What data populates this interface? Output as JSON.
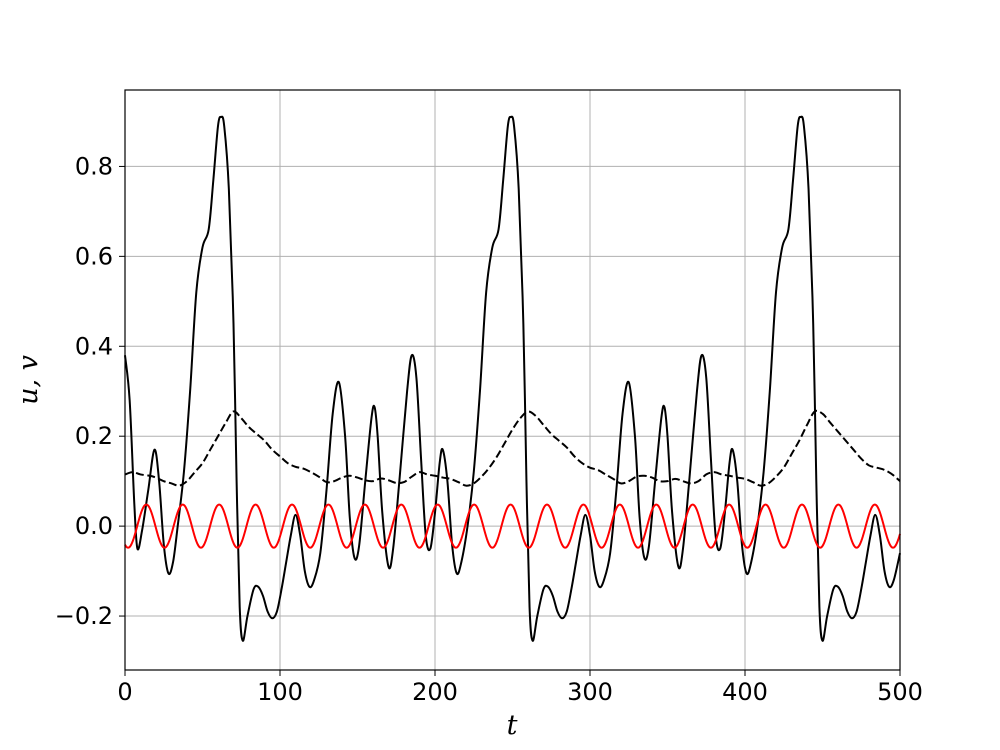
{
  "chart_data": {
    "type": "line",
    "title": "",
    "xlabel": "t",
    "ylabel": "u, v",
    "xlim": [
      0,
      500
    ],
    "ylim": [
      -0.32,
      0.97
    ],
    "xticks": [
      0,
      100,
      200,
      300,
      400,
      500
    ],
    "xtick_labels": [
      "0",
      "100",
      "200",
      "300",
      "400",
      "500"
    ],
    "yticks": [
      -0.2,
      0.0,
      0.2,
      0.4,
      0.6,
      0.8
    ],
    "ytick_labels": [
      "−0.2",
      "0.0",
      "0.2",
      "0.4",
      "0.6",
      "0.8"
    ],
    "grid": true,
    "legend": "none",
    "series": [
      {
        "style": "solid",
        "color": "#000000",
        "points": [
          [
            0,
            0.38
          ],
          [
            3,
            0.28
          ],
          [
            6,
            0.05
          ],
          [
            8,
            -0.05
          ],
          [
            11,
            -0.01
          ],
          [
            15,
            0.08
          ],
          [
            19,
            0.17
          ],
          [
            22,
            0.1
          ],
          [
            25,
            -0.04
          ],
          [
            28,
            -0.105
          ],
          [
            31,
            -0.08
          ],
          [
            34,
            0.0
          ],
          [
            38,
            0.12
          ],
          [
            42,
            0.3
          ],
          [
            46,
            0.52
          ],
          [
            50,
            0.62
          ],
          [
            54,
            0.66
          ],
          [
            57,
            0.77
          ],
          [
            60,
            0.89
          ],
          [
            62,
            0.91
          ],
          [
            64,
            0.89
          ],
          [
            67,
            0.75
          ],
          [
            70,
            0.45
          ],
          [
            72,
            0.1
          ],
          [
            74,
            -0.18
          ],
          [
            76,
            -0.255
          ],
          [
            79,
            -0.2
          ],
          [
            83,
            -0.14
          ],
          [
            86,
            -0.135
          ],
          [
            89,
            -0.155
          ],
          [
            92,
            -0.19
          ],
          [
            95,
            -0.205
          ],
          [
            98,
            -0.19
          ],
          [
            101,
            -0.14
          ],
          [
            104,
            -0.08
          ],
          [
            107,
            -0.02
          ],
          [
            110,
            0.025
          ],
          [
            113,
            -0.02
          ],
          [
            116,
            -0.1
          ],
          [
            119,
            -0.135
          ],
          [
            122,
            -0.12
          ],
          [
            126,
            -0.06
          ],
          [
            130,
            0.08
          ],
          [
            134,
            0.25
          ],
          [
            138,
            0.32
          ],
          [
            142,
            0.2
          ],
          [
            145,
            0.02
          ],
          [
            148,
            -0.07
          ],
          [
            151,
            -0.045
          ],
          [
            155,
            0.1
          ],
          [
            159,
            0.24
          ],
          [
            161,
            0.265
          ],
          [
            163,
            0.2
          ],
          [
            166,
            0.03
          ],
          [
            170,
            -0.09
          ],
          [
            173,
            -0.05
          ],
          [
            177,
            0.1
          ],
          [
            182,
            0.3
          ],
          [
            185,
            0.38
          ],
          [
            188,
            0.33
          ],
          [
            191,
            0.15
          ],
          [
            194,
            -0.02
          ],
          [
            197,
            -0.05
          ],
          [
            200,
            0.03
          ],
          [
            203,
            0.14
          ],
          [
            205,
            0.17
          ],
          [
            208,
            0.1
          ],
          [
            211,
            -0.04
          ],
          [
            214,
            -0.105
          ],
          [
            217,
            -0.08
          ],
          [
            221,
            0.0
          ],
          [
            225,
            0.12
          ],
          [
            229,
            0.3
          ],
          [
            233,
            0.52
          ],
          [
            237,
            0.62
          ],
          [
            241,
            0.66
          ],
          [
            244,
            0.77
          ],
          [
            247,
            0.89
          ],
          [
            249,
            0.91
          ],
          [
            251,
            0.89
          ],
          [
            254,
            0.75
          ],
          [
            257,
            0.45
          ],
          [
            259,
            0.1
          ],
          [
            261,
            -0.18
          ],
          [
            263,
            -0.255
          ],
          [
            266,
            -0.2
          ],
          [
            270,
            -0.14
          ],
          [
            273,
            -0.135
          ],
          [
            276,
            -0.155
          ],
          [
            279,
            -0.19
          ],
          [
            282,
            -0.205
          ],
          [
            285,
            -0.19
          ],
          [
            288,
            -0.14
          ],
          [
            291,
            -0.08
          ],
          [
            294,
            -0.02
          ],
          [
            297,
            0.025
          ],
          [
            300,
            -0.02
          ],
          [
            303,
            -0.1
          ],
          [
            306,
            -0.135
          ],
          [
            309,
            -0.12
          ],
          [
            313,
            -0.06
          ],
          [
            317,
            0.08
          ],
          [
            321,
            0.25
          ],
          [
            325,
            0.32
          ],
          [
            329,
            0.2
          ],
          [
            332,
            0.02
          ],
          [
            335,
            -0.07
          ],
          [
            338,
            -0.045
          ],
          [
            342,
            0.1
          ],
          [
            346,
            0.24
          ],
          [
            348,
            0.265
          ],
          [
            350,
            0.2
          ],
          [
            353,
            0.03
          ],
          [
            357,
            -0.09
          ],
          [
            360,
            -0.05
          ],
          [
            364,
            0.1
          ],
          [
            369,
            0.3
          ],
          [
            372,
            0.38
          ],
          [
            375,
            0.33
          ],
          [
            378,
            0.15
          ],
          [
            381,
            -0.02
          ],
          [
            384,
            -0.05
          ],
          [
            387,
            0.03
          ],
          [
            390,
            0.14
          ],
          [
            392,
            0.17
          ],
          [
            395,
            0.1
          ],
          [
            398,
            -0.04
          ],
          [
            401,
            -0.105
          ],
          [
            404,
            -0.08
          ],
          [
            408,
            0.0
          ],
          [
            412,
            0.12
          ],
          [
            416,
            0.3
          ],
          [
            420,
            0.52
          ],
          [
            424,
            0.62
          ],
          [
            428,
            0.66
          ],
          [
            431,
            0.77
          ],
          [
            434,
            0.89
          ],
          [
            436,
            0.91
          ],
          [
            438,
            0.89
          ],
          [
            441,
            0.75
          ],
          [
            444,
            0.45
          ],
          [
            446,
            0.1
          ],
          [
            448,
            -0.18
          ],
          [
            450,
            -0.255
          ],
          [
            453,
            -0.2
          ],
          [
            457,
            -0.14
          ],
          [
            460,
            -0.135
          ],
          [
            463,
            -0.155
          ],
          [
            466,
            -0.19
          ],
          [
            469,
            -0.205
          ],
          [
            472,
            -0.19
          ],
          [
            475,
            -0.14
          ],
          [
            478,
            -0.08
          ],
          [
            481,
            -0.02
          ],
          [
            484,
            0.025
          ],
          [
            487,
            -0.02
          ],
          [
            490,
            -0.1
          ],
          [
            493,
            -0.135
          ],
          [
            496,
            -0.12
          ],
          [
            500,
            -0.06
          ]
        ]
      },
      {
        "style": "dashed",
        "color": "#000000",
        "points": [
          [
            0,
            0.115
          ],
          [
            5,
            0.12
          ],
          [
            10,
            0.115
          ],
          [
            16,
            0.112
          ],
          [
            20,
            0.108
          ],
          [
            25,
            0.1
          ],
          [
            30,
            0.095
          ],
          [
            35,
            0.09
          ],
          [
            40,
            0.1
          ],
          [
            45,
            0.12
          ],
          [
            50,
            0.14
          ],
          [
            55,
            0.17
          ],
          [
            60,
            0.2
          ],
          [
            65,
            0.23
          ],
          [
            70,
            0.255
          ],
          [
            75,
            0.24
          ],
          [
            80,
            0.22
          ],
          [
            85,
            0.205
          ],
          [
            90,
            0.19
          ],
          [
            95,
            0.17
          ],
          [
            100,
            0.155
          ],
          [
            105,
            0.14
          ],
          [
            110,
            0.132
          ],
          [
            115,
            0.128
          ],
          [
            120,
            0.12
          ],
          [
            125,
            0.11
          ],
          [
            130,
            0.098
          ],
          [
            135,
            0.1
          ],
          [
            140,
            0.108
          ],
          [
            145,
            0.112
          ],
          [
            150,
            0.108
          ],
          [
            155,
            0.102
          ],
          [
            160,
            0.1
          ],
          [
            165,
            0.106
          ],
          [
            170,
            0.102
          ],
          [
            175,
            0.096
          ],
          [
            180,
            0.098
          ],
          [
            185,
            0.11
          ],
          [
            190,
            0.12
          ],
          [
            195,
            0.115
          ],
          [
            200,
            0.112
          ],
          [
            205,
            0.108
          ],
          [
            210,
            0.105
          ],
          [
            215,
            0.098
          ],
          [
            220,
            0.09
          ],
          [
            225,
            0.095
          ],
          [
            230,
            0.11
          ],
          [
            235,
            0.13
          ],
          [
            240,
            0.155
          ],
          [
            245,
            0.185
          ],
          [
            250,
            0.215
          ],
          [
            255,
            0.24
          ],
          [
            260,
            0.255
          ],
          [
            265,
            0.245
          ],
          [
            270,
            0.225
          ],
          [
            275,
            0.205
          ],
          [
            280,
            0.19
          ],
          [
            285,
            0.175
          ],
          [
            290,
            0.155
          ],
          [
            295,
            0.14
          ],
          [
            300,
            0.13
          ],
          [
            305,
            0.125
          ],
          [
            310,
            0.115
          ],
          [
            315,
            0.105
          ],
          [
            320,
            0.095
          ],
          [
            325,
            0.1
          ],
          [
            330,
            0.11
          ],
          [
            335,
            0.112
          ],
          [
            340,
            0.108
          ],
          [
            345,
            0.1
          ],
          [
            350,
            0.1
          ],
          [
            355,
            0.105
          ],
          [
            360,
            0.1
          ],
          [
            365,
            0.095
          ],
          [
            370,
            0.1
          ],
          [
            375,
            0.115
          ],
          [
            380,
            0.12
          ],
          [
            385,
            0.115
          ],
          [
            390,
            0.112
          ],
          [
            395,
            0.108
          ],
          [
            400,
            0.105
          ],
          [
            405,
            0.098
          ],
          [
            410,
            0.09
          ],
          [
            415,
            0.095
          ],
          [
            420,
            0.11
          ],
          [
            425,
            0.13
          ],
          [
            430,
            0.16
          ],
          [
            435,
            0.19
          ],
          [
            440,
            0.225
          ],
          [
            445,
            0.255
          ],
          [
            450,
            0.25
          ],
          [
            455,
            0.23
          ],
          [
            460,
            0.21
          ],
          [
            465,
            0.19
          ],
          [
            470,
            0.17
          ],
          [
            475,
            0.15
          ],
          [
            480,
            0.135
          ],
          [
            485,
            0.13
          ],
          [
            490,
            0.125
          ],
          [
            495,
            0.115
          ],
          [
            500,
            0.1
          ]
        ]
      },
      {
        "style": "solid",
        "color": "#ff0000",
        "function": "sine",
        "amplitude": 0.048,
        "period": 23.5,
        "phase_x": 2,
        "points": [
          [
            0,
            -0.045
          ],
          [
            14,
            0.048
          ],
          [
            38,
            0.048
          ],
          [
            61,
            0.048
          ],
          [
            85,
            0.048
          ],
          [
            108,
            0.048
          ],
          [
            132,
            0.048
          ],
          [
            155,
            0.048
          ],
          [
            179,
            0.048
          ],
          [
            202,
            0.048
          ],
          [
            226,
            0.048
          ],
          [
            249,
            0.048
          ],
          [
            273,
            0.048
          ],
          [
            296,
            0.048
          ],
          [
            320,
            0.048
          ],
          [
            343,
            0.048
          ],
          [
            367,
            0.048
          ],
          [
            390,
            0.048
          ],
          [
            414,
            0.048
          ],
          [
            437,
            0.048
          ],
          [
            461,
            0.048
          ],
          [
            484,
            0.048
          ],
          [
            500,
            0.005
          ]
        ]
      }
    ]
  }
}
